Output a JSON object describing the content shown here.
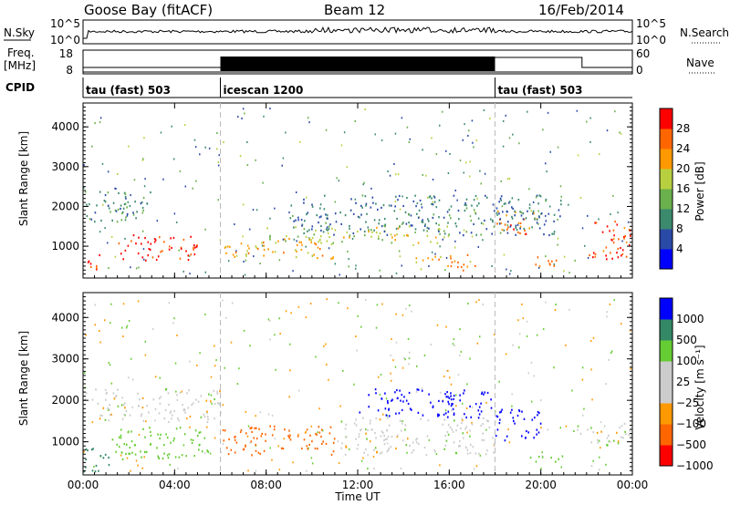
{
  "header": {
    "station": "Goose Bay (fitACF)",
    "beam": "Beam 12",
    "date": "16/Feb/2014"
  },
  "top_panels": {
    "nsky_label": "N.Sky",
    "nsearch_label": "N.Search",
    "freq_label_line1": "Freq.",
    "freq_label_line2": "[MHz]",
    "nave_label": "Nave",
    "cpid_label": "CPID",
    "noise_ticks": [
      "10^5",
      "10^0"
    ],
    "freq_ticks": [
      "18",
      "8"
    ],
    "nave_ticks": [
      "60",
      "0"
    ]
  },
  "cpid_segments": [
    {
      "start_hour": 0,
      "end_hour": 6,
      "label": "tau (fast) 503"
    },
    {
      "start_hour": 6,
      "end_hour": 18,
      "label": "icescan 1200"
    },
    {
      "start_hour": 18,
      "end_hour": 24,
      "label": "tau (fast) 503"
    }
  ],
  "colors": {
    "power": [
      "#0000ff",
      "#2a4aa8",
      "#3c8a6e",
      "#6ab04c",
      "#b8d040",
      "#ff9900",
      "#ff6600",
      "#ff0000"
    ],
    "velocity": [
      "#ff0000",
      "#ff6600",
      "#ff9900",
      "#cccccc",
      "#cccccc",
      "#66cc33",
      "#338866",
      "#0000ff"
    ]
  },
  "chart_data": [
    {
      "type": "heatmap",
      "title": "",
      "xlabel": "Time UT",
      "ylabel": "Slant Range [km]",
      "xlim": [
        0,
        24
      ],
      "ylim": [
        200,
        4600
      ],
      "x_ticks": [
        "00:00",
        "04:00",
        "08:00",
        "12:00",
        "16:00",
        "20:00",
        "00:00"
      ],
      "y_ticks": [
        "1000",
        "2000",
        "3000",
        "4000"
      ],
      "colorbar": {
        "label": "Power [dB]",
        "ticks": [
          "28",
          "24",
          "20",
          "16",
          "12",
          "8",
          "4"
        ],
        "range": [
          0,
          30
        ]
      },
      "regions": [
        {
          "t0": 0.1,
          "t1": 0.8,
          "r0": 350,
          "r1": 850,
          "value": 28
        },
        {
          "t0": 1.5,
          "t1": 5.0,
          "r0": 650,
          "r1": 1300,
          "value": 28
        },
        {
          "t0": 6.0,
          "t1": 11.0,
          "r0": 700,
          "r1": 1150,
          "value": 20
        },
        {
          "t0": 8.0,
          "t1": 16.0,
          "r0": 1100,
          "r1": 1550,
          "value": 16
        },
        {
          "t0": 14.5,
          "t1": 17.2,
          "r0": 400,
          "r1": 800,
          "value": 22
        },
        {
          "t0": 18.0,
          "t1": 19.8,
          "r0": 1300,
          "r1": 1900,
          "value": 24
        },
        {
          "t0": 22.0,
          "t1": 24.0,
          "r0": 700,
          "r1": 1700,
          "value": 26
        },
        {
          "t0": 0.0,
          "t1": 3.0,
          "r0": 1600,
          "r1": 2400,
          "value": 10
        },
        {
          "t0": 9.0,
          "t1": 21.0,
          "r0": 1300,
          "r1": 2300,
          "value": 8
        },
        {
          "t0": 19.5,
          "t1": 20.8,
          "r0": 500,
          "r1": 800,
          "value": 22
        }
      ]
    },
    {
      "type": "heatmap",
      "title": "",
      "xlabel": "Time UT",
      "ylabel": "Slant Range [km]",
      "xlim": [
        0,
        24
      ],
      "ylim": [
        200,
        4600
      ],
      "x_ticks": [
        "00:00",
        "04:00",
        "08:00",
        "12:00",
        "16:00",
        "20:00",
        "00:00"
      ],
      "y_ticks": [
        "1000",
        "2000",
        "3000",
        "4000"
      ],
      "colorbar": {
        "label": "Velocity [m s⁻¹]",
        "ticks": [
          "1000",
          "500",
          "100",
          "25",
          "−25",
          "−100",
          "−500",
          "−1000"
        ],
        "range": [
          -1000,
          1000
        ]
      },
      "regions": [
        {
          "t0": 0.0,
          "t1": 1.2,
          "r0": 300,
          "r1": 900,
          "value": 200
        },
        {
          "t0": 1.2,
          "t1": 5.5,
          "r0": 600,
          "r1": 1400,
          "value": 60
        },
        {
          "t0": 6.0,
          "t1": 11.0,
          "r0": 700,
          "r1": 1400,
          "value": -200
        },
        {
          "t0": 0.0,
          "t1": 6.0,
          "r0": 1500,
          "r1": 2300,
          "value": 0
        },
        {
          "t0": 11.0,
          "t1": 18.0,
          "r0": 700,
          "r1": 1600,
          "value": 0
        },
        {
          "t0": 12.0,
          "t1": 18.0,
          "r0": 1600,
          "r1": 2300,
          "value": 600
        },
        {
          "t0": 18.0,
          "t1": 20.0,
          "r0": 1000,
          "r1": 1800,
          "value": 700
        },
        {
          "t0": 19.5,
          "t1": 21.0,
          "r0": 500,
          "r1": 750,
          "value": 60
        },
        {
          "t0": 21.5,
          "t1": 24.0,
          "r0": 1000,
          "r1": 1500,
          "value": 0
        },
        {
          "t0": 22.8,
          "t1": 24.0,
          "r0": 900,
          "r1": 1050,
          "value": 60
        }
      ]
    }
  ]
}
